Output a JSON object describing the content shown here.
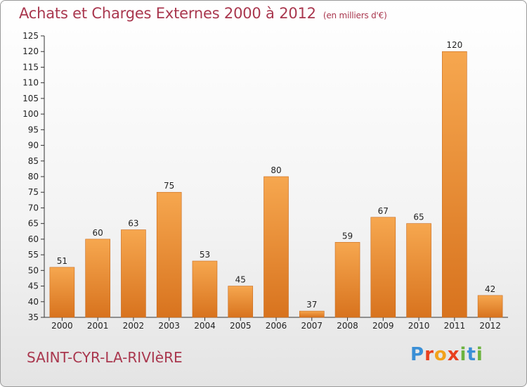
{
  "header": {
    "title": "Achats et Charges Externes 2000 à 2012",
    "unit": "(en milliers d'€)"
  },
  "footer": {
    "place": "SAINT-CYR-LA-RIVIèRE",
    "logo": "Proxiti",
    "logo_colors": [
      "#3a8fd6",
      "#e8401f",
      "#f2a21b",
      "#e8401f",
      "#6cb33f",
      "#3a8fd6",
      "#6cb33f"
    ]
  },
  "colors": {
    "title": "#a9374e",
    "bar_light": "#f6a74f",
    "bar_dark": "#d8731e"
  },
  "chart_data": {
    "type": "bar",
    "title": "Achats et Charges Externes 2000 à 2012",
    "xlabel": "",
    "ylabel": "",
    "categories": [
      "2000",
      "2001",
      "2002",
      "2003",
      "2004",
      "2005",
      "2006",
      "2007",
      "2008",
      "2009",
      "2010",
      "2011",
      "2012"
    ],
    "values": [
      51,
      60,
      63,
      75,
      53,
      45,
      80,
      37,
      59,
      67,
      65,
      120,
      42
    ],
    "ylim": [
      35,
      125
    ],
    "yticks": [
      35,
      40,
      45,
      50,
      55,
      60,
      65,
      70,
      75,
      80,
      85,
      90,
      95,
      100,
      105,
      110,
      115,
      120,
      125
    ],
    "grid": false,
    "legend": "none"
  }
}
